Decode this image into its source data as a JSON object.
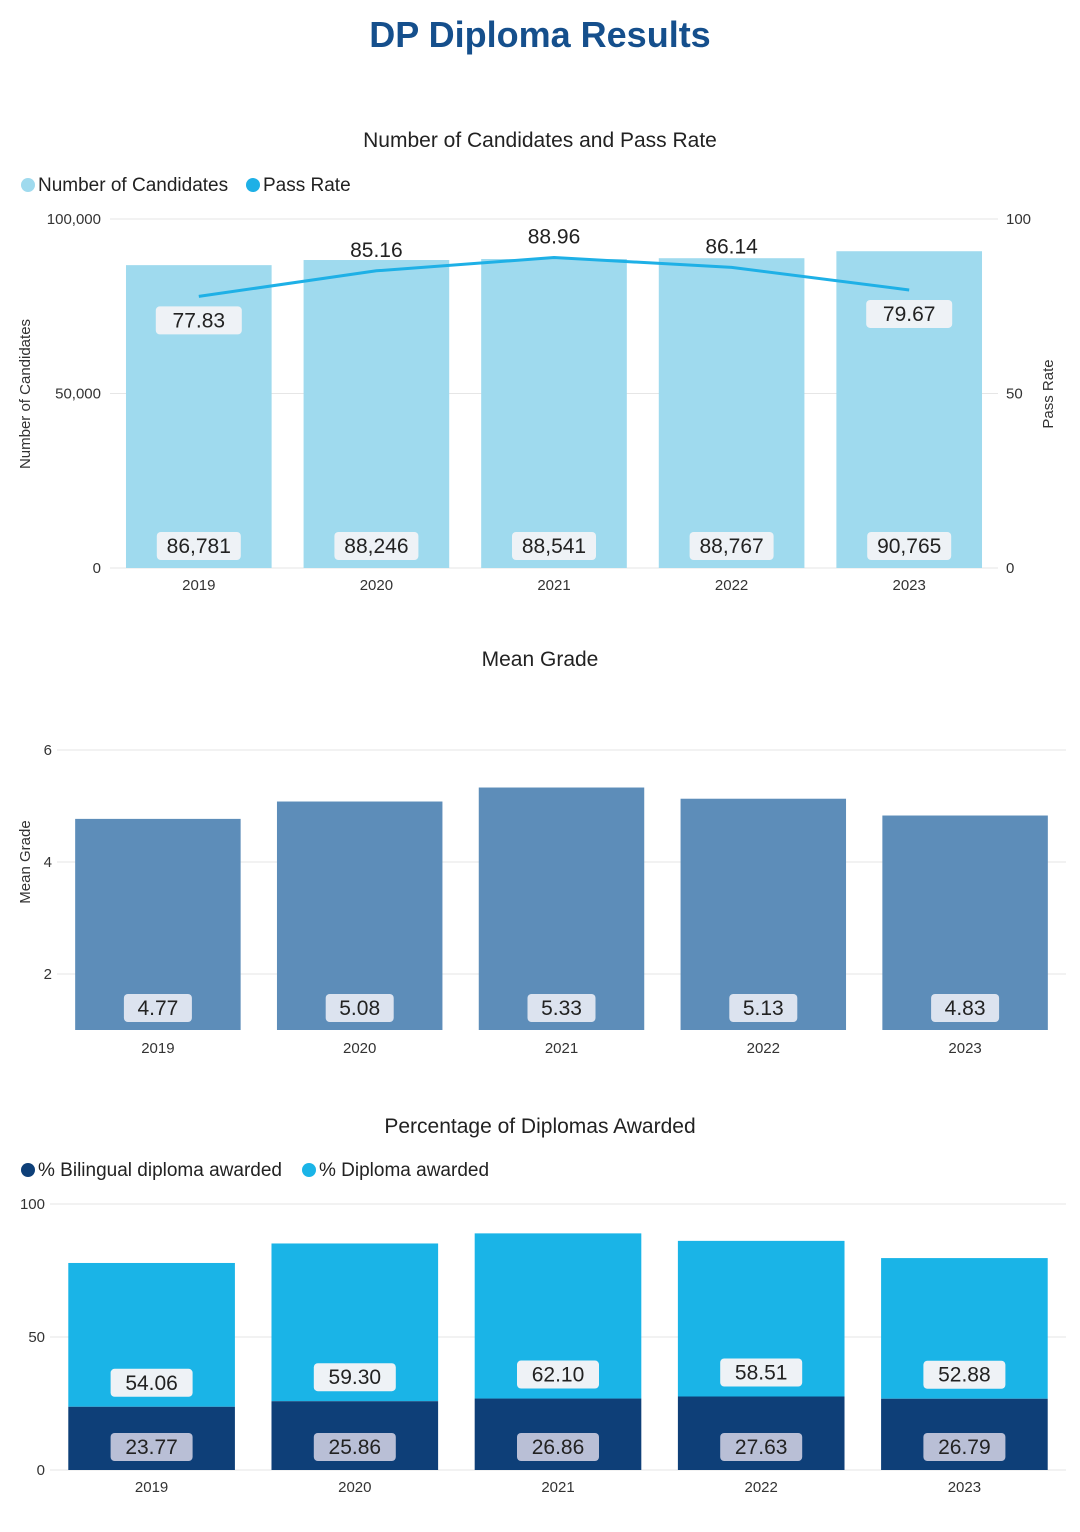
{
  "page_title": "DP Diploma Results",
  "colors": {
    "title": "#154f8c",
    "candidates_bar": "#9fdaee",
    "pass_rate_line": "#1eb0e6",
    "mean_grade_bar": "#5d8db9",
    "bilingual_bar": "#0e3f78",
    "diploma_bar": "#1ab4e7",
    "label_box_light": "#eef2f6",
    "label_box_grade": "#dce3ef",
    "label_box_dark": "#b9bfd6"
  },
  "chart_data": [
    {
      "type": "bar",
      "title": "Number of Candidates and Pass Rate",
      "categories": [
        "2019",
        "2020",
        "2021",
        "2022",
        "2023"
      ],
      "series": [
        {
          "name": "Number of Candidates",
          "type": "bar",
          "axis": "left",
          "values": [
            86781,
            88246,
            88541,
            88767,
            90765
          ],
          "labels": [
            "86,781",
            "88,246",
            "88,541",
            "88,767",
            "90,765"
          ]
        },
        {
          "name": "Pass Rate",
          "type": "line",
          "axis": "right",
          "values": [
            77.83,
            85.16,
            88.96,
            86.14,
            79.67
          ],
          "labels": [
            "77.83",
            "85.16",
            "88.96",
            "86.14",
            "79.67"
          ]
        }
      ],
      "ylabel": "Number of Candidates",
      "ylim": [
        0,
        100000
      ],
      "yticks": [
        "0",
        "50,000",
        "100,000"
      ],
      "y2label": "Pass Rate",
      "y2lim": [
        0,
        100
      ],
      "y2ticks": [
        "0",
        "50",
        "100"
      ],
      "legend_position": "top-left"
    },
    {
      "type": "bar",
      "title": "Mean Grade",
      "categories": [
        "2019",
        "2020",
        "2021",
        "2022",
        "2023"
      ],
      "series": [
        {
          "name": "Mean Grade",
          "values": [
            4.77,
            5.08,
            5.33,
            5.13,
            4.83
          ],
          "labels": [
            "4.77",
            "5.08",
            "5.33",
            "5.13",
            "4.83"
          ]
        }
      ],
      "ylabel": "Mean Grade",
      "ylim": [
        1,
        6
      ],
      "yticks": [
        "2",
        "4",
        "6"
      ]
    },
    {
      "type": "bar",
      "stacked": true,
      "title": "Percentage of Diplomas Awarded",
      "categories": [
        "2019",
        "2020",
        "2021",
        "2022",
        "2023"
      ],
      "series": [
        {
          "name": "% Bilingual diploma awarded",
          "values": [
            23.77,
            25.86,
            26.86,
            27.63,
            26.79
          ],
          "labels": [
            "23.77",
            "25.86",
            "26.86",
            "27.63",
            "26.79"
          ]
        },
        {
          "name": "% Diploma awarded",
          "values": [
            54.06,
            59.3,
            62.1,
            58.51,
            52.88
          ],
          "labels": [
            "54.06",
            "59.30",
            "62.10",
            "58.51",
            "52.88"
          ]
        }
      ],
      "ylabel": "",
      "ylim": [
        0,
        100
      ],
      "yticks": [
        "0",
        "50",
        "100"
      ],
      "legend_position": "top-left"
    }
  ]
}
